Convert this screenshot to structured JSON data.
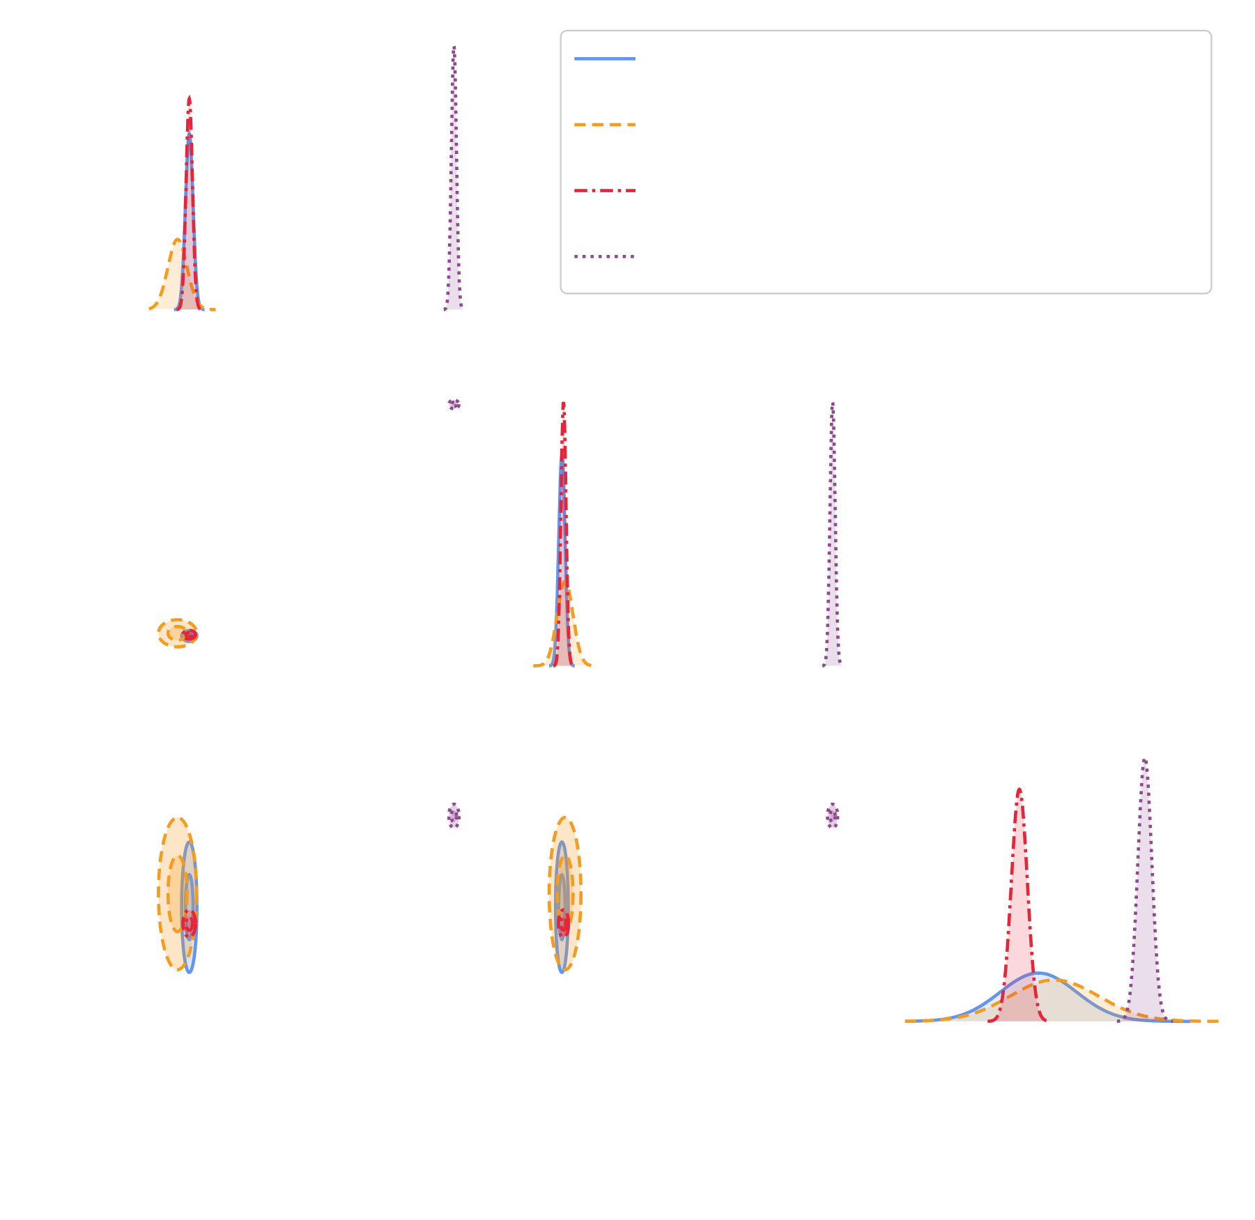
{
  "chart_data": {
    "type": "corner",
    "xlim": [
      0,
      1
    ],
    "series": [
      {
        "color": "#6495ed",
        "linestyle": "solid",
        "means": [
          0.127,
          0.11,
          0.42
        ],
        "sigmas": [
          0.012,
          0.01,
          0.12
        ]
      },
      {
        "color": "#f39c1f",
        "linestyle": "dashed",
        "means": [
          0.09,
          0.12,
          0.47
        ],
        "sigmas": [
          0.03,
          0.025,
          0.14
        ]
      },
      {
        "color": "#e3263a",
        "linestyle": "dashdot",
        "means": [
          0.127,
          0.115,
          0.36
        ],
        "sigmas": [
          0.01,
          0.008,
          0.025
        ]
      },
      {
        "color": "#8e4a8e",
        "linestyle": "dotted",
        "means": [
          0.96,
          0.962,
          0.755
        ],
        "sigmas": [
          0.008,
          0.008,
          0.022
        ]
      }
    ]
  }
}
